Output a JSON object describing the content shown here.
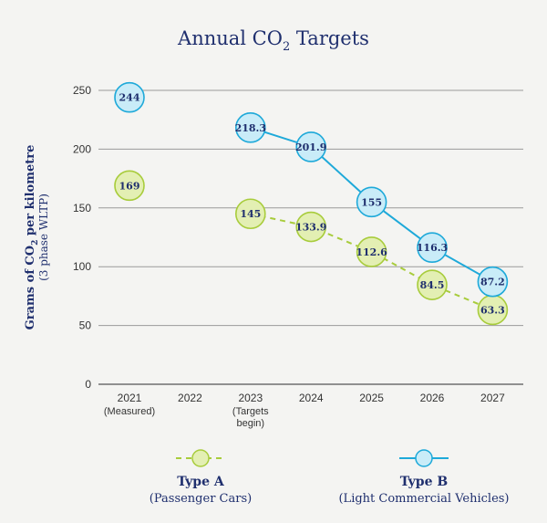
{
  "chart_data": {
    "type": "line",
    "title": "Annual CO",
    "title_sub": "2",
    "title_suffix": " Targets",
    "ylabel": "Grams of CO",
    "ylabel_sub": "2",
    "ylabel_suffix": " per kilometre",
    "ylabel2": "(3 phase WLTP)",
    "ylim": [
      0,
      250
    ],
    "yticks": [
      0,
      50,
      100,
      150,
      200,
      250
    ],
    "grid": true,
    "categories": [
      "2021",
      "2022",
      "2023",
      "2024",
      "2025",
      "2026",
      "2027"
    ],
    "category_notes": [
      "(Measured)",
      "",
      "(Targets",
      "",
      "",
      "",
      ""
    ],
    "category_notes2": [
      "",
      "",
      "begin)",
      "",
      "",
      "",
      ""
    ],
    "series": [
      {
        "name": "Type A",
        "subtitle": "(Passenger Cars)",
        "color": "#a8cc3c",
        "fill": "#e3efb3",
        "line_style": "dashed",
        "points": [
          {
            "x": "2021",
            "y": 169,
            "label": "169",
            "connected": false
          },
          {
            "x": "2023",
            "y": 145,
            "label": "145",
            "connected": true
          },
          {
            "x": "2024",
            "y": 133.9,
            "label": "133.9",
            "connected": true
          },
          {
            "x": "2025",
            "y": 112.6,
            "label": "112.6",
            "connected": true
          },
          {
            "x": "2026",
            "y": 84.5,
            "label": "84.5",
            "connected": true
          },
          {
            "x": "2027",
            "y": 63.3,
            "label": "63.3",
            "connected": true
          }
        ]
      },
      {
        "name": "Type B",
        "subtitle": "(Light Commercial Vehicles)",
        "color": "#1ea9d9",
        "fill": "#c9ecf8",
        "line_style": "solid",
        "points": [
          {
            "x": "2021",
            "y": 244,
            "label": "244",
            "connected": false
          },
          {
            "x": "2023",
            "y": 218.3,
            "label": "218.3",
            "connected": true
          },
          {
            "x": "2024",
            "y": 201.9,
            "label": "201.9",
            "connected": true
          },
          {
            "x": "2025",
            "y": 155,
            "label": "155",
            "connected": true
          },
          {
            "x": "2026",
            "y": 116.3,
            "label": "116.3",
            "connected": true
          },
          {
            "x": "2027",
            "y": 87.2,
            "label": "87.2",
            "connected": true
          }
        ]
      }
    ],
    "legend_position": "bottom"
  }
}
